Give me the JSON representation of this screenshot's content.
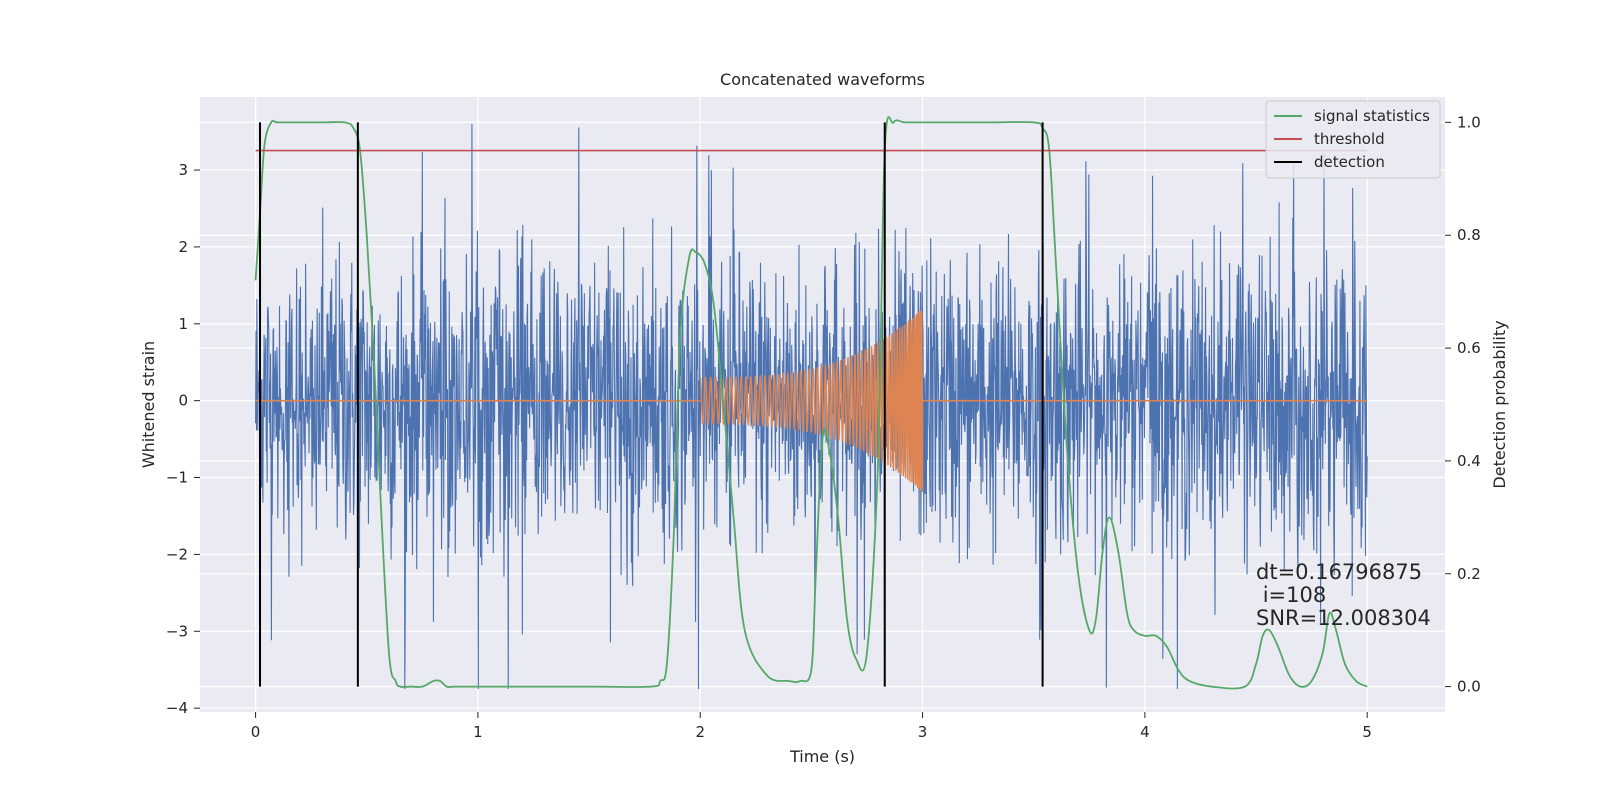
{
  "chart_data": {
    "type": "line",
    "title": "Concatenated waveforms",
    "xlabel": "Time (s)",
    "ylabel": "Whitened strain",
    "ylabel_right": "Detection probability",
    "xlim": [
      -0.25,
      5.35
    ],
    "ylim": [
      -4.05,
      3.95
    ],
    "ylim_right": [
      -0.045,
      1.045
    ],
    "xticks": [
      0,
      1,
      2,
      3,
      4,
      5
    ],
    "yticks": [
      -4,
      -3,
      -2,
      -1,
      0,
      1,
      2,
      3
    ],
    "yticks_right": [
      0.0,
      0.2,
      0.4,
      0.6,
      0.8,
      1.0
    ],
    "xtick_labels": [
      "0",
      "1",
      "2",
      "3",
      "4",
      "5"
    ],
    "ytick_labels": [
      "−4",
      "−3",
      "−2",
      "−1",
      "0",
      "1",
      "2",
      "3"
    ],
    "ytick_right_labels": [
      "0.0",
      "0.2",
      "0.4",
      "0.6",
      "0.8",
      "1.0"
    ],
    "grid": true,
    "legend_position": "top-right",
    "series": [
      {
        "name": "",
        "axis": "left",
        "color": "#4c72b0",
        "kind": "noise",
        "x_range": [
          0,
          5
        ],
        "amplitude_envelope": [
          2.4,
          3.5
        ]
      },
      {
        "name": "",
        "axis": "left",
        "color": "#dd8452",
        "kind": "chirp",
        "flat_segments": [
          [
            0,
            2
          ],
          [
            3,
            5
          ]
        ],
        "chirp_x": [
          2.0,
          3.0
        ],
        "chirp_amplitude": [
          0.3,
          1.2
        ]
      },
      {
        "name": "signal statistics",
        "axis": "right",
        "color": "#55a868",
        "x": [
          0,
          0.02,
          0.04,
          0.07,
          0.1,
          0.2,
          0.3,
          0.4,
          0.44,
          0.47,
          0.5,
          0.53,
          0.56,
          0.6,
          0.63,
          0.65,
          0.7,
          0.75,
          0.8,
          0.83,
          0.86,
          0.9,
          1.0,
          1.5,
          1.78,
          1.82,
          1.85,
          1.88,
          1.91,
          1.95,
          1.98,
          2.02,
          2.06,
          2.1,
          2.15,
          2.2,
          2.3,
          2.4,
          2.45,
          2.5,
          2.52,
          2.55,
          2.58,
          2.62,
          2.66,
          2.7,
          2.75,
          2.8,
          2.83,
          2.87,
          2.92,
          3.0,
          3.3,
          3.5,
          3.54,
          3.57,
          3.6,
          3.65,
          3.7,
          3.75,
          3.78,
          3.81,
          3.84,
          3.88,
          3.92,
          3.95,
          4.0,
          4.05,
          4.1,
          4.15,
          4.2,
          4.3,
          4.45,
          4.5,
          4.53,
          4.56,
          4.6,
          4.65,
          4.7,
          4.75,
          4.8,
          4.83,
          4.86,
          4.9,
          4.95,
          5.0
        ],
        "values": [
          0.72,
          0.84,
          0.96,
          1.0,
          1.0,
          1.0,
          1.0,
          1.0,
          0.99,
          0.95,
          0.8,
          0.6,
          0.35,
          0.06,
          0.01,
          0.0,
          0.0,
          0.0,
          0.01,
          0.01,
          0.0,
          0.0,
          0.0,
          0.0,
          0.0,
          0.01,
          0.04,
          0.26,
          0.62,
          0.76,
          0.77,
          0.75,
          0.68,
          0.52,
          0.3,
          0.1,
          0.02,
          0.01,
          0.01,
          0.03,
          0.2,
          0.44,
          0.42,
          0.3,
          0.12,
          0.05,
          0.06,
          0.4,
          0.95,
          1.0,
          1.0,
          1.0,
          1.0,
          1.0,
          0.99,
          0.95,
          0.75,
          0.42,
          0.2,
          0.1,
          0.12,
          0.24,
          0.3,
          0.24,
          0.13,
          0.1,
          0.09,
          0.09,
          0.07,
          0.03,
          0.01,
          0.0,
          0.0,
          0.04,
          0.09,
          0.1,
          0.07,
          0.02,
          0.0,
          0.01,
          0.06,
          0.13,
          0.1,
          0.04,
          0.01,
          0.0
        ]
      },
      {
        "name": "threshold",
        "axis": "right",
        "color": "#c44e52",
        "x": [
          0,
          5
        ],
        "values": [
          0.95,
          0.95
        ]
      },
      {
        "name": "detection",
        "axis": "right",
        "color": "#000000",
        "kind": "vlines",
        "x": [
          0.02,
          0.46,
          2.83,
          3.54
        ],
        "y_range": [
          0.0,
          1.0
        ]
      }
    ],
    "annotation": {
      "lines": [
        "dt=0.16796875",
        " i=108",
        "SNR=12.008304"
      ],
      "x": 4.5,
      "y": 0.12,
      "axis": "right"
    }
  },
  "legend": {
    "entries": [
      {
        "label": "signal statistics",
        "color": "#55a868"
      },
      {
        "label": "threshold",
        "color": "#c44e52"
      },
      {
        "label": "detection",
        "color": "#000000"
      }
    ]
  },
  "colors": {
    "axes_background": "#eaeaf2",
    "grid": "#ffffff",
    "text": "#262626"
  }
}
